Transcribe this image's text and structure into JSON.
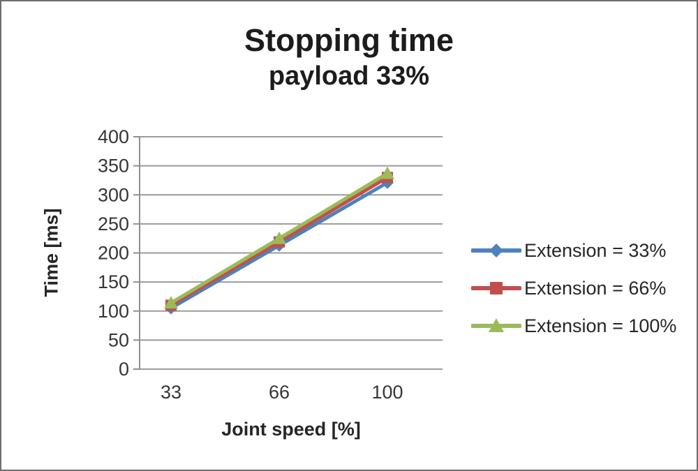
{
  "title": {
    "line1": "Stopping time",
    "line2": "payload 33%"
  },
  "axes": {
    "x": {
      "title": "Joint speed [%]",
      "tick_labels": [
        "33",
        "66",
        "100"
      ]
    },
    "y": {
      "title": "Time [ms]",
      "min": 0,
      "max": 400,
      "tick_step": 50
    }
  },
  "colors": {
    "series_blue": "#4F81BD",
    "series_red": "#C0504D",
    "series_green": "#9BBB59",
    "gridline": "#9b9b9b",
    "axis_line": "#8f8f8f",
    "text": "#363636"
  },
  "chart_data": {
    "type": "line",
    "title": "Stopping time",
    "subtitle": "payload 33%",
    "categories": [
      33,
      66,
      100
    ],
    "xlabel": "Joint speed [%]",
    "ylabel": "Time [ms]",
    "ylim": [
      0,
      400
    ],
    "ytick_step": 50,
    "grid": true,
    "legend_position": "right",
    "series": [
      {
        "name": "Extension = 33%",
        "color": "#4F81BD",
        "marker": "diamond",
        "values": [
          105,
          213,
          321
        ]
      },
      {
        "name": "Extension = 66%",
        "color": "#C0504D",
        "marker": "square",
        "values": [
          110,
          219,
          330
        ]
      },
      {
        "name": "Extension = 100%",
        "color": "#9BBB59",
        "marker": "triangle",
        "values": [
          114,
          225,
          337
        ]
      }
    ]
  }
}
